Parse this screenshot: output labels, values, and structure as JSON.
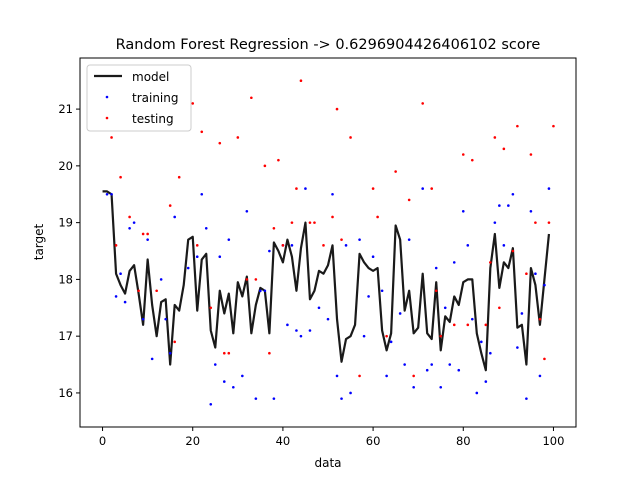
{
  "chart_data": {
    "type": "scatter",
    "title": "Random Forest Regression -> 0.6296904426406102 score",
    "xlabel": "data",
    "ylabel": "target",
    "xlim": [
      -5,
      105
    ],
    "ylim": [
      15.4,
      21.9
    ],
    "x_ticks": [
      0,
      20,
      40,
      60,
      80,
      100
    ],
    "y_ticks": [
      16,
      17,
      18,
      19,
      20,
      21
    ],
    "grid": false,
    "legend": {
      "placement": "top-left",
      "entries": [
        "model",
        "training",
        "testing"
      ]
    },
    "colors": {
      "model": "#1a1a1a",
      "training": "#0000ff",
      "testing": "#ff0000"
    },
    "series": [
      {
        "name": "model",
        "kind": "line",
        "x": [
          0,
          1,
          2,
          3,
          4,
          5,
          6,
          7,
          8,
          9,
          10,
          11,
          12,
          13,
          14,
          15,
          16,
          17,
          18,
          19,
          20,
          21,
          22,
          23,
          24,
          25,
          26,
          27,
          28,
          29,
          30,
          31,
          32,
          33,
          34,
          35,
          36,
          37,
          38,
          39,
          40,
          41,
          42,
          43,
          44,
          45,
          46,
          47,
          48,
          49,
          50,
          51,
          52,
          53,
          54,
          55,
          56,
          57,
          58,
          59,
          60,
          61,
          62,
          63,
          64,
          65,
          66,
          67,
          68,
          69,
          70,
          71,
          72,
          73,
          74,
          75,
          76,
          77,
          78,
          79,
          80,
          81,
          82,
          83,
          84,
          85,
          86,
          87,
          88,
          89,
          90,
          91,
          92,
          93,
          94,
          95,
          96,
          97,
          98,
          99
        ],
        "y": [
          19.55,
          19.55,
          19.5,
          18.1,
          17.9,
          17.75,
          18.15,
          18.25,
          17.75,
          17.2,
          18.35,
          17.55,
          17.0,
          17.6,
          17.65,
          16.5,
          17.55,
          17.45,
          17.9,
          18.7,
          18.75,
          17.45,
          18.35,
          18.45,
          17.1,
          16.8,
          17.8,
          17.4,
          17.75,
          17.05,
          17.95,
          17.7,
          18.05,
          17.05,
          17.55,
          17.85,
          17.8,
          17.05,
          18.65,
          18.5,
          18.3,
          18.7,
          18.4,
          17.8,
          18.55,
          19.0,
          17.65,
          17.8,
          18.15,
          18.1,
          18.25,
          18.6,
          17.3,
          16.55,
          16.95,
          17.0,
          17.2,
          18.45,
          18.3,
          18.2,
          18.15,
          18.2,
          17.1,
          16.75,
          17.05,
          18.95,
          18.7,
          17.45,
          17.8,
          17.05,
          17.15,
          18.1,
          17.05,
          16.95,
          17.95,
          16.75,
          17.35,
          17.25,
          17.7,
          17.55,
          17.95,
          18.0,
          18.0,
          17.05,
          16.7,
          16.4,
          18.2,
          18.8,
          17.85,
          18.3,
          18.2,
          18.55,
          17.15,
          17.2,
          16.5,
          18.2,
          17.9,
          17.2,
          18.0,
          18.8
        ]
      },
      {
        "name": "training",
        "kind": "points",
        "x": [
          1,
          2,
          3,
          4,
          5,
          6,
          7,
          9,
          10,
          11,
          13,
          14,
          15,
          16,
          19,
          21,
          22,
          23,
          24,
          25,
          26,
          27,
          28,
          29,
          31,
          32,
          34,
          35,
          36,
          37,
          38,
          40,
          41,
          42,
          43,
          44,
          45,
          46,
          48,
          50,
          51,
          52,
          53,
          54,
          55,
          57,
          58,
          59,
          60,
          62,
          63,
          64,
          66,
          67,
          68,
          69,
          71,
          72,
          73,
          74,
          75,
          76,
          77,
          78,
          79,
          80,
          81,
          82,
          83,
          84,
          85,
          86,
          87,
          88,
          89,
          90,
          91,
          92,
          93,
          94,
          95,
          96,
          97,
          98,
          99
        ],
        "y": [
          19.5,
          19.5,
          17.7,
          18.1,
          17.6,
          18.9,
          19.0,
          17.3,
          18.7,
          16.6,
          18.0,
          17.3,
          16.7,
          19.1,
          18.2,
          18.4,
          19.5,
          18.9,
          15.8,
          16.5,
          18.4,
          16.2,
          18.7,
          16.1,
          16.3,
          19.2,
          15.9,
          17.8,
          17.8,
          18.5,
          15.9,
          18.6,
          17.2,
          18.6,
          17.1,
          17.0,
          19.6,
          17.1,
          17.5,
          17.3,
          19.5,
          16.3,
          15.9,
          18.6,
          16.0,
          18.7,
          17.0,
          17.7,
          18.4,
          17.8,
          16.3,
          16.9,
          17.4,
          16.5,
          18.7,
          16.1,
          19.6,
          16.4,
          16.5,
          18.2,
          16.1,
          17.5,
          16.5,
          18.3,
          16.4,
          19.2,
          18.6,
          17.3,
          16.0,
          16.9,
          16.2,
          16.7,
          19.0,
          19.3,
          18.6,
          19.3,
          19.5,
          16.8,
          17.4,
          15.9,
          19.2,
          18.1,
          16.3,
          17.9,
          19.6
        ]
      },
      {
        "name": "testing",
        "kind": "points",
        "x": [
          2,
          3,
          4,
          6,
          8,
          9,
          10,
          12,
          15,
          16,
          17,
          20,
          21,
          22,
          24,
          26,
          27,
          28,
          30,
          32,
          33,
          34,
          36,
          37,
          38,
          39,
          40,
          42,
          43,
          44,
          46,
          47,
          49,
          51,
          52,
          53,
          55,
          57,
          60,
          61,
          63,
          65,
          68,
          69,
          71,
          73,
          74,
          75,
          78,
          80,
          81,
          82,
          85,
          86,
          87,
          88,
          89,
          91,
          92,
          94,
          95,
          96,
          97,
          98,
          99,
          100
        ],
        "y": [
          20.5,
          18.6,
          19.8,
          19.1,
          17.8,
          18.8,
          18.8,
          17.8,
          19.3,
          16.9,
          19.8,
          21.1,
          18.6,
          20.6,
          17.5,
          20.4,
          16.7,
          16.7,
          20.5,
          18.0,
          21.2,
          18.0,
          20.0,
          16.7,
          18.9,
          20.1,
          18.6,
          19.0,
          19.6,
          21.5,
          19.0,
          19.0,
          18.6,
          19.1,
          21.0,
          18.7,
          20.5,
          16.3,
          19.6,
          19.1,
          17.0,
          19.9,
          19.4,
          16.3,
          21.1,
          19.6,
          17.8,
          17.0,
          17.2,
          20.2,
          17.2,
          20.1,
          17.2,
          18.3,
          20.5,
          17.5,
          20.3,
          18.5,
          20.7,
          18.1,
          20.2,
          19.0,
          17.3,
          16.6,
          19.0,
          20.7
        ]
      }
    ]
  }
}
